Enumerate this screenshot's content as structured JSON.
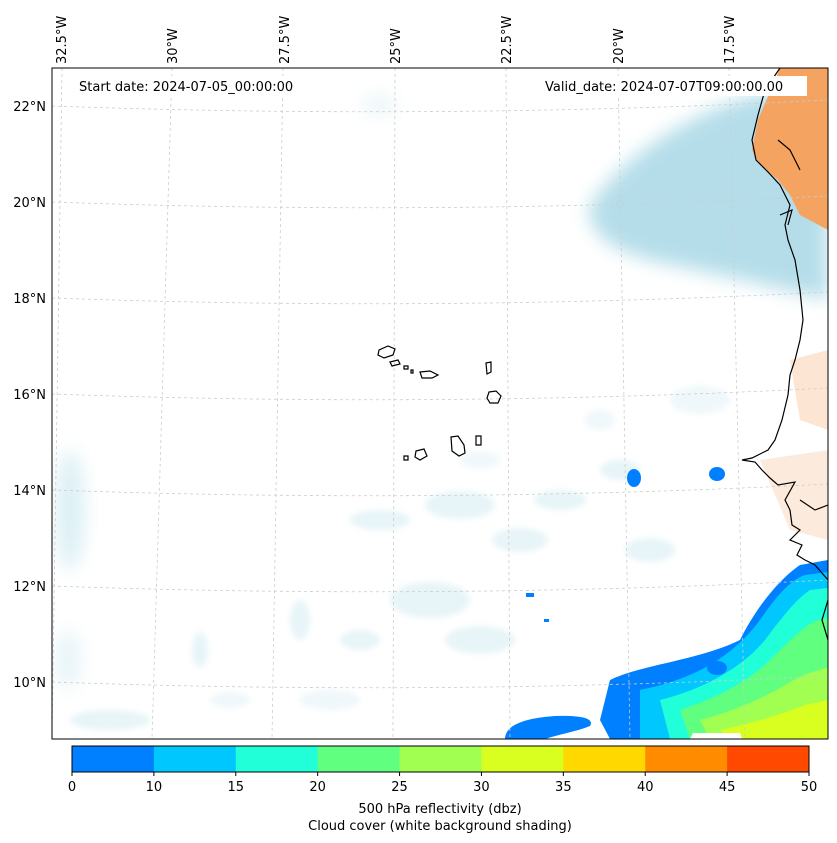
{
  "map": {
    "start_date": "Start date: 2024-07-05_00:00:00",
    "valid_date": "Valid_date: 2024-07-07T09:00:00.00",
    "lon_labels": [
      "32.5°W",
      "30°W",
      "27.5°W",
      "25°W",
      "22.5°W",
      "20°W",
      "17.5°W"
    ],
    "lat_labels": [
      "22°N",
      "20°N",
      "18°N",
      "16°N",
      "14°N",
      "12°N",
      "10°N"
    ],
    "gridlines": true
  },
  "colorbar": {
    "ticks": [
      "0",
      "10",
      "15",
      "20",
      "25",
      "30",
      "35",
      "40",
      "45",
      "50"
    ],
    "colors": [
      "#0080ff",
      "#00c8ff",
      "#20ffd8",
      "#60ff80",
      "#a0ff50",
      "#d8ff20",
      "#ffd800",
      "#ff8c00",
      "#ff4800"
    ],
    "label_line1": "500 hPa reflectivity (dbz)",
    "label_line2": "Cloud cover (white background shading)"
  },
  "colors": {
    "cloud_cover": "#a8d8e6",
    "land_surface": "#f4a460",
    "coastline": "#000000",
    "gridline": "#cccccc"
  }
}
